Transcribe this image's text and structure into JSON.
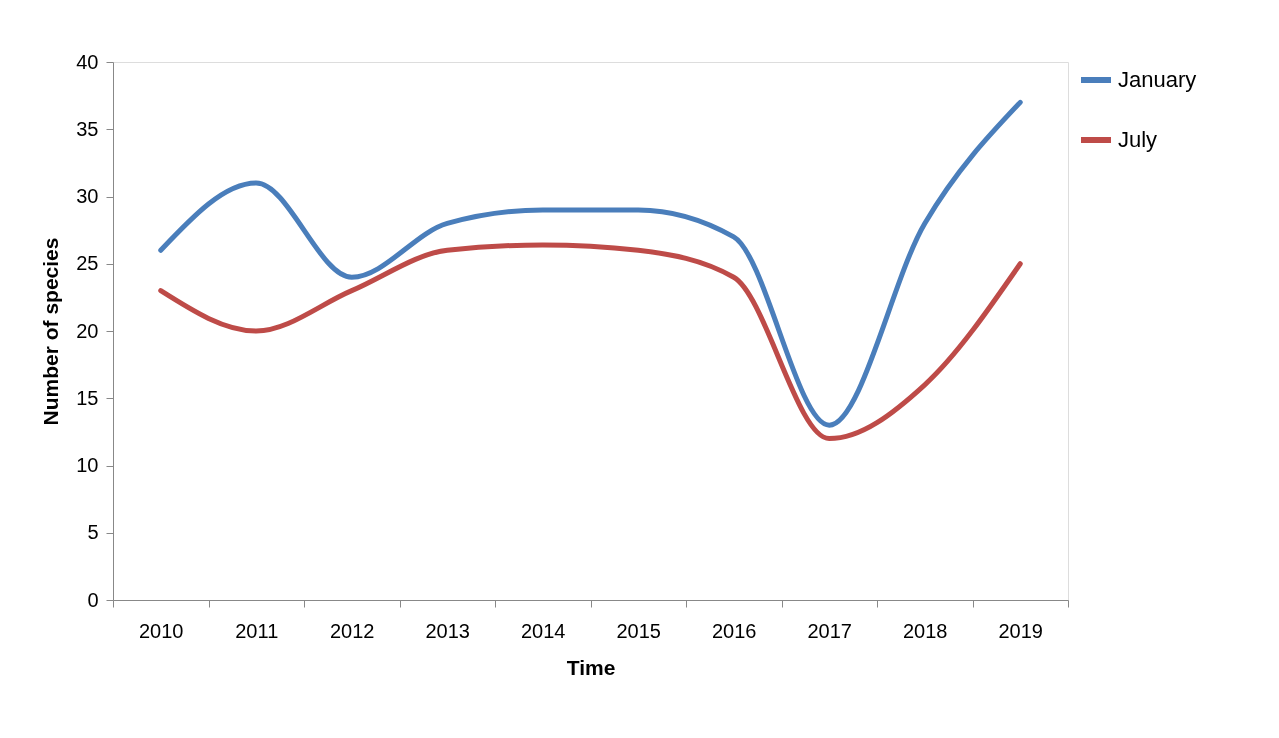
{
  "chart_data": {
    "type": "line",
    "xlabel": "Time",
    "ylabel": "Number of species",
    "categories": [
      "2010",
      "2011",
      "2012",
      "2013",
      "2014",
      "2015",
      "2016",
      "2017",
      "2018",
      "2019"
    ],
    "series": [
      {
        "name": "January",
        "color": "#4a7ebb",
        "values": [
          26,
          31,
          24,
          28,
          29,
          29,
          27,
          13,
          28,
          37
        ]
      },
      {
        "name": "July",
        "color": "#be4b48",
        "values": [
          23,
          20,
          23,
          26,
          26.4,
          26,
          24,
          12,
          16,
          25
        ]
      }
    ],
    "ylim": [
      0,
      40
    ],
    "yticks": [
      0,
      5,
      10,
      15,
      20,
      25,
      30,
      35,
      40
    ],
    "grid": false,
    "legend": "right",
    "marker": "none",
    "line_style": "solid"
  }
}
